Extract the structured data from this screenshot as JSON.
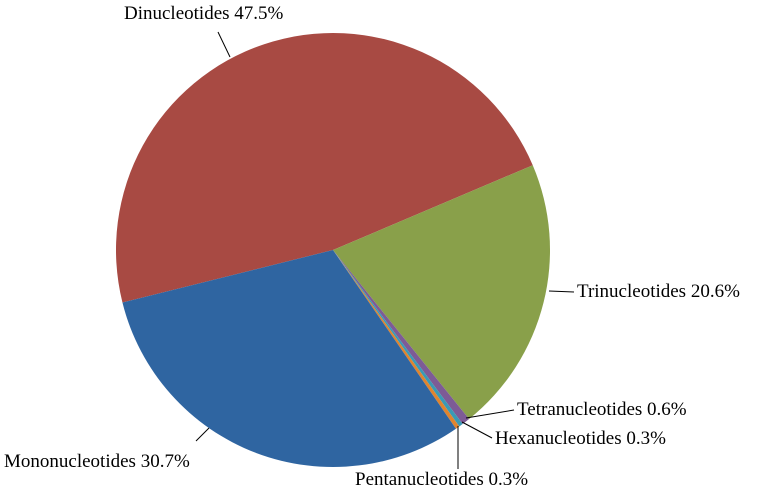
{
  "chart_data": {
    "type": "pie",
    "categories": [
      "Dinucleotides",
      "Trinucleotides",
      "Tetranucleotides",
      "Hexanucleotides",
      "Pentanucleotides",
      "Mononucleotides"
    ],
    "values": [
      47.5,
      20.6,
      0.6,
      0.3,
      0.3,
      30.7
    ],
    "value_labels": [
      "47.5%",
      "20.6%",
      "0.6%",
      "0.3%",
      "0.3%",
      "30.7%"
    ],
    "colors": [
      "#a84a43",
      "#89a04a",
      "#7d5b96",
      "#3a9ab5",
      "#e0842e",
      "#2f65a1"
    ]
  }
}
